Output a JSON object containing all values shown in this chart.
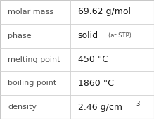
{
  "rows": [
    {
      "label": "molar mass",
      "value": "69.62 g/mol",
      "value_suffix": null,
      "superscript": null
    },
    {
      "label": "phase",
      "value": "solid",
      "value_suffix": "(at STP)",
      "superscript": null
    },
    {
      "label": "melting point",
      "value": "450 °C",
      "value_suffix": null,
      "superscript": null
    },
    {
      "label": "boiling point",
      "value": "1860 °C",
      "value_suffix": null,
      "superscript": null
    },
    {
      "label": "density",
      "value": "2.46 g/cm",
      "value_suffix": null,
      "superscript": "3"
    }
  ],
  "col_split": 0.455,
  "background_color": "#ffffff",
  "label_color": "#505050",
  "value_color": "#1a1a1a",
  "suffix_color": "#505050",
  "label_fontsize": 8.0,
  "value_fontsize": 9.0,
  "suffix_fontsize": 6.0,
  "superscript_fontsize": 6.0,
  "border_color": "#c8c8c8",
  "row_line_color": "#d0d0d0"
}
